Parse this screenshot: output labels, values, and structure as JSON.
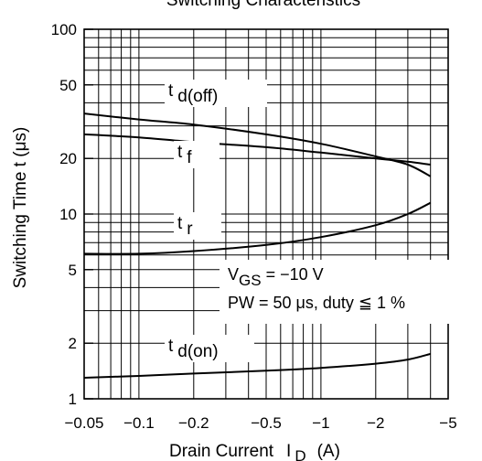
{
  "chart_data": {
    "type": "line",
    "title": "Switching Characteristics",
    "xlabel": "Drain Current",
    "xlabel_symbol": "I",
    "xlabel_sub": "D",
    "xlabel_unit": "(A)",
    "ylabel": "Switching Time  t  (μs)",
    "x_scale": "log",
    "y_scale": "log",
    "x_range": [
      -0.05,
      -5
    ],
    "y_range": [
      1,
      100
    ],
    "grid": true,
    "x_ticks": [
      {
        "value": 0.05,
        "label": "−0.05"
      },
      {
        "value": 0.1,
        "label": "−0.1"
      },
      {
        "value": 0.2,
        "label": "−0.2"
      },
      {
        "value": 0.5,
        "label": "−0.5"
      },
      {
        "value": 1,
        "label": "−1"
      },
      {
        "value": 2,
        "label": "−2"
      },
      {
        "value": 5,
        "label": "−5"
      }
    ],
    "y_ticks": [
      {
        "value": 1,
        "label": "1"
      },
      {
        "value": 2,
        "label": "2"
      },
      {
        "value": 5,
        "label": "5"
      },
      {
        "value": 10,
        "label": "10"
      },
      {
        "value": 20,
        "label": "20"
      },
      {
        "value": 50,
        "label": "50"
      },
      {
        "value": 100,
        "label": "100"
      }
    ],
    "conditions": {
      "line1_prefix": "V",
      "line1_sub": "GS",
      "line1_rest": " = −10 V",
      "line2": "PW = 50 μs, duty ≦ 1 %"
    },
    "series": [
      {
        "name": "t d(off)",
        "main": "t",
        "sub": "d(off)",
        "x": [
          -0.05,
          -0.1,
          -0.2,
          -0.5,
          -1,
          -2,
          -3,
          -4
        ],
        "y": [
          35,
          32.5,
          30.5,
          27,
          24,
          20.5,
          18.5,
          16
        ]
      },
      {
        "name": "t f",
        "main": "t",
        "sub": "f",
        "x": [
          -0.05,
          -0.1,
          -0.2,
          -0.5,
          -1,
          -2,
          -3,
          -4
        ],
        "y": [
          27,
          26,
          24.5,
          23,
          21.5,
          20,
          19.2,
          18.5
        ]
      },
      {
        "name": "t r",
        "main": "t",
        "sub": "r",
        "x": [
          -0.05,
          -0.1,
          -0.2,
          -0.5,
          -1,
          -2,
          -3,
          -4
        ],
        "y": [
          6.1,
          6.1,
          6.3,
          6.8,
          7.5,
          8.7,
          10,
          11.5
        ]
      },
      {
        "name": "t d(on)",
        "main": "t",
        "sub": "d(on)",
        "x": [
          -0.05,
          -0.1,
          -0.2,
          -0.5,
          -1,
          -2,
          -3,
          -4
        ],
        "y": [
          1.3,
          1.33,
          1.37,
          1.42,
          1.47,
          1.55,
          1.63,
          1.75
        ]
      }
    ]
  }
}
